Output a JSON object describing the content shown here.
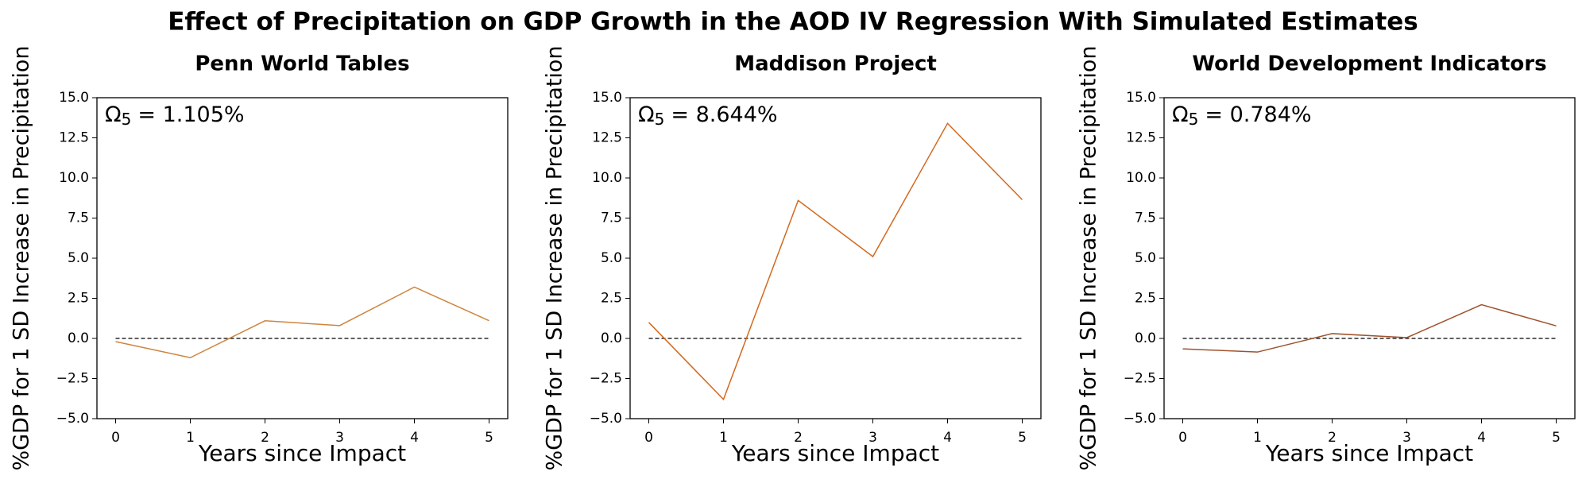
{
  "title": "Effect of Precipitation on GDP Growth in the AOD IV Regression With Simulated Estimates",
  "chart_data": [
    {
      "type": "line",
      "title": "Penn World Tables",
      "x_label": "Years since Impact",
      "y_label": "%GDP for 1 SD Increase in Precipitation",
      "annotation": {
        "symbol": "Ω",
        "subscript": "5",
        "text": "= 1.105%"
      },
      "x": [
        0,
        1,
        2,
        3,
        4,
        5
      ],
      "series": [
        {
          "color": "#cd853f",
          "values": [
            -0.2,
            -1.2,
            1.1,
            0.8,
            3.2,
            1.105
          ]
        }
      ],
      "reference_line": 0,
      "xlim": [
        -0.25,
        5.25
      ],
      "xticks": [
        0,
        1,
        2,
        3,
        4,
        5
      ],
      "ylim": [
        -5,
        15
      ],
      "yticks": [
        {
          "value": -5,
          "label": "−5.0"
        },
        {
          "value": -2.5,
          "label": "−2.5"
        },
        {
          "value": 0,
          "label": "0.0"
        },
        {
          "value": 2.5,
          "label": "2.5"
        },
        {
          "value": 5,
          "label": "5.0"
        },
        {
          "value": 7.5,
          "label": "7.5"
        },
        {
          "value": 10,
          "label": "10.0"
        },
        {
          "value": 12.5,
          "label": "12.5"
        },
        {
          "value": 15,
          "label": "15.0"
        }
      ]
    },
    {
      "type": "line",
      "title": "Maddison Project",
      "x_label": "Years since Impact",
      "y_label": "%GDP for 1 SD Increase in Precipitation",
      "annotation": {
        "symbol": "Ω",
        "subscript": "5",
        "text": "= 8.644%"
      },
      "x": [
        0,
        1,
        2,
        3,
        4,
        5
      ],
      "series": [
        {
          "color": "#d2691e",
          "values": [
            1.0,
            -3.8,
            8.6,
            5.1,
            13.4,
            8.644
          ]
        }
      ],
      "reference_line": 0,
      "xlim": [
        -0.25,
        5.25
      ],
      "xticks": [
        0,
        1,
        2,
        3,
        4,
        5
      ],
      "ylim": [
        -5,
        15
      ],
      "yticks": [
        {
          "value": -5,
          "label": "−5.0"
        },
        {
          "value": -2.5,
          "label": "−2.5"
        },
        {
          "value": 0,
          "label": "0.0"
        },
        {
          "value": 2.5,
          "label": "2.5"
        },
        {
          "value": 5,
          "label": "5.0"
        },
        {
          "value": 7.5,
          "label": "7.5"
        },
        {
          "value": 10,
          "label": "10.0"
        },
        {
          "value": 12.5,
          "label": "12.5"
        },
        {
          "value": 15,
          "label": "15.0"
        }
      ]
    },
    {
      "type": "line",
      "title": "World Development Indicators",
      "x_label": "Years since Impact",
      "y_label": "%GDP for 1 SD Increase in Precipitation",
      "annotation": {
        "symbol": "Ω",
        "subscript": "5",
        "text": "= 0.784%"
      },
      "x": [
        0,
        1,
        2,
        3,
        4,
        5
      ],
      "series": [
        {
          "color": "#a0522d",
          "values": [
            -0.65,
            -0.85,
            0.3,
            0.05,
            2.1,
            0.784
          ]
        }
      ],
      "reference_line": 0,
      "xlim": [
        -0.25,
        5.25
      ],
      "xticks": [
        0,
        1,
        2,
        3,
        4,
        5
      ],
      "ylim": [
        -5,
        15
      ],
      "yticks": [
        {
          "value": -5,
          "label": "−5.0"
        },
        {
          "value": -2.5,
          "label": "−2.5"
        },
        {
          "value": 0,
          "label": "0.0"
        },
        {
          "value": 2.5,
          "label": "2.5"
        },
        {
          "value": 5,
          "label": "5.0"
        },
        {
          "value": 7.5,
          "label": "7.5"
        },
        {
          "value": 10,
          "label": "10.0"
        },
        {
          "value": 12.5,
          "label": "12.5"
        },
        {
          "value": 15,
          "label": "15.0"
        }
      ]
    }
  ]
}
